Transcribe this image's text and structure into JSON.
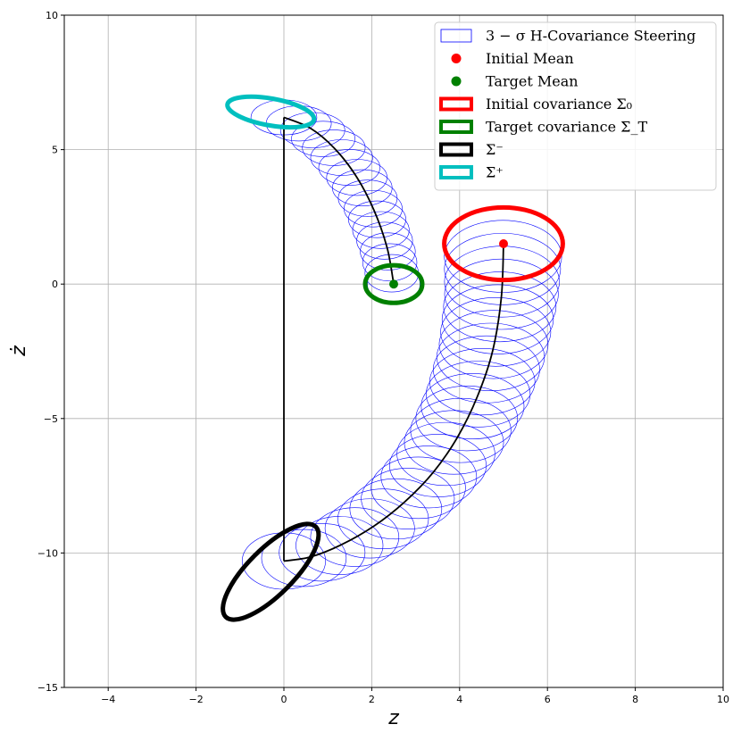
{
  "chart_data": {
    "type": "line",
    "xlabel": "z",
    "ylabel": "ż",
    "xlim": [
      -5,
      10
    ],
    "ylim": [
      -15,
      10
    ],
    "xticks": [
      -4,
      -2,
      0,
      2,
      4,
      6,
      8,
      10
    ],
    "xtick_labels": [
      "−4",
      "−2",
      "0",
      "2",
      "4",
      "6",
      "8",
      "10"
    ],
    "yticks": [
      -15,
      -10,
      -5,
      0,
      5,
      10
    ],
    "ytick_labels": [
      "−15",
      "−10",
      "−5",
      "0",
      "5",
      "10"
    ],
    "grid": true,
    "legend_position": "top-right",
    "colors": {
      "steering": "#0000ff",
      "initial": "#ff0000",
      "target": "#008000",
      "sigma_minus": "#000000",
      "sigma_plus": "#00bfbf",
      "mean_path": "#000000"
    },
    "legend": [
      {
        "label": "3 − σ H-Covariance Steering",
        "marker": "rect-thin",
        "color": "#0000ff"
      },
      {
        "label": "Initial Mean",
        "marker": "dot",
        "color": "#ff0000"
      },
      {
        "label": "Target Mean",
        "marker": "dot",
        "color": "#008000"
      },
      {
        "label": "Initial covariance Σ₀",
        "marker": "rect-thick",
        "color": "#ff0000"
      },
      {
        "label": "Target covariance Σ_T",
        "marker": "rect-thick",
        "color": "#008000"
      },
      {
        "label": "Σ⁻",
        "marker": "rect-thick",
        "color": "#000000"
      },
      {
        "label": "Σ⁺",
        "marker": "rect-thick",
        "color": "#00bfbf"
      }
    ],
    "initial_mean": [
      5.0,
      1.5
    ],
    "target_mean": [
      2.5,
      0.0
    ],
    "initial_covariance_ellipse": {
      "center": [
        5.0,
        1.5
      ],
      "rx": 1.35,
      "ry": 1.35,
      "angle_deg": 0
    },
    "target_covariance_ellipse": {
      "center": [
        2.5,
        0.0
      ],
      "rx": 0.65,
      "ry": 0.7,
      "angle_deg": 0
    },
    "sigma_minus_ellipse": {
      "center": [
        -0.3,
        -10.7
      ],
      "rx": 1.45,
      "ry": 0.85,
      "angle_deg": 45
    },
    "sigma_plus_ellipse": {
      "center": [
        -0.3,
        6.4
      ],
      "rx": 1.0,
      "ry": 0.5,
      "angle_deg": -10
    },
    "mean_path_segment_1": {
      "x": [
        5.0,
        4.95,
        4.75,
        4.4,
        3.95,
        3.4,
        2.75,
        2.05,
        1.3,
        0.6,
        0.0
      ],
      "y": [
        1.5,
        -0.5,
        -2.5,
        -4.2,
        -5.7,
        -7.0,
        -8.1,
        -9.0,
        -9.7,
        -10.15,
        -10.3
      ]
    },
    "jump_segment": {
      "x": [
        0.0,
        0.0
      ],
      "y": [
        -10.3,
        6.2
      ]
    },
    "mean_path_segment_2": {
      "x": [
        0.0,
        0.6,
        1.15,
        1.65,
        2.05,
        2.35,
        2.5
      ],
      "y": [
        6.2,
        5.8,
        5.05,
        4.0,
        2.75,
        1.35,
        0.0
      ]
    },
    "steering_ellipses_segment_1": {
      "count": 30,
      "rx_start": 1.35,
      "rx_end": 0.95,
      "ry_start": 1.35,
      "ry_end": 1.05
    },
    "steering_ellipses_segment_2": {
      "count": 18,
      "rx_start": 0.75,
      "rx_end": 0.6,
      "ry_start": 0.65,
      "ry_end": 0.7
    }
  }
}
